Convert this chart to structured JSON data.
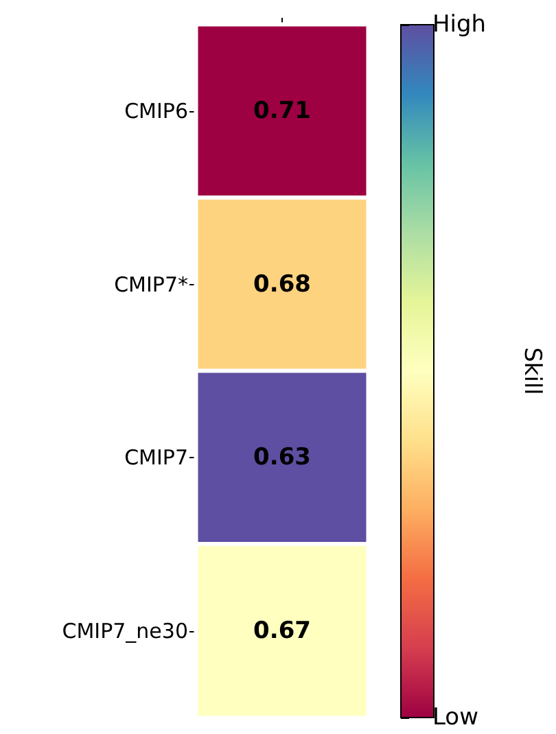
{
  "chart_data": {
    "type": "heatmap",
    "categories": [
      null
    ],
    "y_categories": [
      "CMIP6",
      "CMIP7*",
      "CMIP7",
      "CMIP7_ne30"
    ],
    "cells": [
      [
        0.71
      ],
      [
        0.68
      ],
      [
        0.63
      ],
      [
        0.67
      ]
    ],
    "data_labels": true,
    "clabel": "Skill",
    "clim": [
      0.71,
      0.63
    ],
    "cticks": [
      {
        "value": 0.71,
        "label": "Low"
      },
      {
        "value": 0.63,
        "label": "High"
      }
    ]
  }
}
